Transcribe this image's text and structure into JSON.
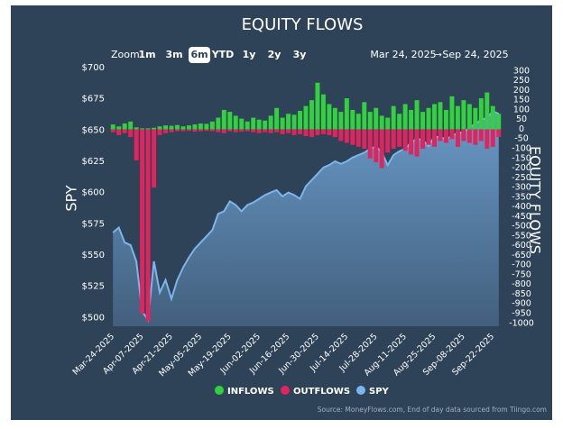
{
  "toolbar": {
    "zoom_label": "Zoom",
    "buttons": [
      "1m",
      "3m",
      "6m",
      "YTD",
      "1y",
      "2y",
      "3y"
    ],
    "selected": "6m",
    "date_from": "Mar 24, 2025",
    "arrow": "→",
    "date_to": "Sep 24, 2025"
  },
  "source": "Source: MoneyFlows.com, End of day data sourced from Tiingo.com",
  "chart_data": {
    "type": "bar",
    "title": "EQUITY FLOWS",
    "y_label": "SPY",
    "y2_label": "EQUITY FLOWS",
    "categories": [
      "Mar-24-2025",
      null,
      null,
      null,
      null,
      "Apr-07-2025",
      null,
      null,
      null,
      null,
      "Apr-21-2025",
      null,
      null,
      null,
      null,
      "May-05-2025",
      null,
      null,
      null,
      null,
      "May-19-2025",
      null,
      null,
      null,
      null,
      "Jun-02-2025",
      null,
      null,
      null,
      null,
      "Jun-16-2025",
      null,
      null,
      null,
      null,
      "Jun-30-2025",
      null,
      null,
      null,
      null,
      "Jul-14-2025",
      null,
      null,
      null,
      null,
      "Jul-28-2025",
      null,
      null,
      null,
      null,
      "Aug-11-2025",
      null,
      null,
      null,
      null,
      "Aug-25-2025",
      null,
      null,
      null,
      null,
      "Sep-08-2025",
      null,
      null,
      null,
      null,
      "Sep-22-2025",
      null
    ],
    "series": [
      {
        "name": "SPY",
        "type": "area",
        "axis": "y",
        "color": "#7cb5ec",
        "values": [
          568,
          572,
          560,
          558,
          545,
          505,
          498,
          545,
          520,
          530,
          515,
          530,
          540,
          548,
          555,
          560,
          565,
          570,
          583,
          585,
          593,
          590,
          585,
          590,
          592,
          595,
          598,
          600,
          602,
          597,
          600,
          598,
          595,
          605,
          610,
          615,
          620,
          622,
          625,
          623,
          625,
          628,
          630,
          632,
          635,
          637,
          632,
          622,
          630,
          633,
          635,
          640,
          643,
          642,
          637,
          645,
          644,
          643,
          645,
          648,
          648,
          652,
          655,
          658,
          660,
          665,
          663
        ]
      },
      {
        "name": "INFLOWS",
        "axis": "y2",
        "color": "#33d13f",
        "values": [
          25,
          15,
          30,
          40,
          10,
          5,
          5,
          8,
          15,
          20,
          18,
          22,
          15,
          20,
          25,
          30,
          28,
          40,
          60,
          100,
          90,
          70,
          55,
          40,
          60,
          50,
          45,
          70,
          110,
          60,
          80,
          75,
          95,
          120,
          150,
          240,
          180,
          130,
          110,
          90,
          160,
          100,
          80,
          140,
          90,
          110,
          70,
          60,
          120,
          80,
          130,
          100,
          150,
          90,
          110,
          130,
          140,
          100,
          170,
          120,
          150,
          130,
          110,
          160,
          190,
          120,
          80
        ]
      },
      {
        "name": "OUTFLOWS",
        "axis": "y2",
        "color": "#e0245e",
        "values": [
          -15,
          -30,
          -20,
          -40,
          -160,
          -950,
          -990,
          -300,
          -30,
          -20,
          -15,
          -10,
          -10,
          -8,
          -12,
          -10,
          -8,
          -10,
          -15,
          -20,
          -10,
          -15,
          -12,
          -10,
          -15,
          -20,
          -15,
          -20,
          -15,
          -25,
          -20,
          -30,
          -25,
          -35,
          -40,
          -30,
          -25,
          -30,
          -40,
          -60,
          -70,
          -80,
          -90,
          -100,
          -150,
          -170,
          -200,
          -120,
          -100,
          -90,
          -110,
          -130,
          -140,
          -100,
          -80,
          -90,
          -60,
          -70,
          -50,
          -90,
          -60,
          -70,
          -80,
          -60,
          -100,
          -90,
          -40
        ]
      }
    ],
    "ylim": [
      493,
      700
    ],
    "yticks": [
      {
        "value": 500,
        "label": "$500"
      },
      {
        "value": 525,
        "label": "$525"
      },
      {
        "value": 550,
        "label": "$550"
      },
      {
        "value": 575,
        "label": "$575"
      },
      {
        "value": 600,
        "label": "$600"
      },
      {
        "value": 625,
        "label": "$625"
      },
      {
        "value": 650,
        "label": "$650"
      },
      {
        "value": 675,
        "label": "$675"
      },
      {
        "value": 700,
        "label": "$700"
      }
    ],
    "y2lim": [
      -1015,
      318
    ],
    "y2ticks": [
      300,
      250,
      200,
      150,
      100,
      50,
      0,
      -50,
      -100,
      -150,
      -200,
      -250,
      -300,
      -350,
      -400,
      -450,
      -500,
      -550,
      -600,
      -650,
      -700,
      -750,
      -800,
      -850,
      -900,
      -950,
      -1000
    ],
    "grid": false,
    "legend": "bottom"
  }
}
